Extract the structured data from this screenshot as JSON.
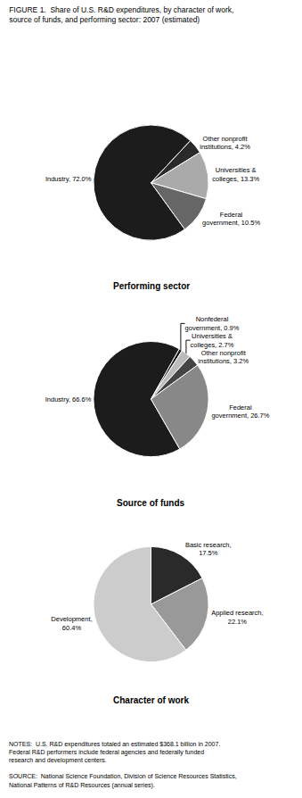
{
  "chart_data": [
    {
      "type": "pie",
      "title": "FIGURE 1.  Share of U.S. R&D expenditures, by character of work,\nsource of funds, and performing sector: 2007 (estimated)",
      "subtitle": "Performing sector",
      "values": [
        72.0,
        4.2,
        13.3,
        10.5
      ],
      "value_labels": [
        "Industry, 72.0%",
        "Other nonprofit\ninstitutions, 4.2%",
        "Universities &\ncolleges, 13.3%",
        "Federal\ngovernment, 10.5%"
      ],
      "colors": [
        "#1c1c1c",
        "#2a2a2a",
        "#aaaaaa",
        "#666666"
      ]
    },
    {
      "type": "pie",
      "subtitle": "Source of funds",
      "values": [
        66.6,
        0.9,
        2.7,
        3.2,
        26.7
      ],
      "value_labels": [
        "Industry, 66.6%",
        "Nonfederal\ngovernment, 0.9%",
        "Universities &\ncolleges, 2.7%",
        "Other nonprofit\ninstitutions, 3.2%",
        "Federal\ngovernment, 26.7%"
      ],
      "colors": [
        "#1c1c1c",
        "#111111",
        "#bbbbbb",
        "#444444",
        "#888888"
      ]
    },
    {
      "type": "pie",
      "subtitle": "Character of work",
      "values": [
        17.5,
        22.1,
        60.4
      ],
      "value_labels": [
        "Basic research,\n17.5%",
        "Applied research,\n22.1%",
        "Development,\n60.4%"
      ],
      "colors": [
        "#2a2a2a",
        "#999999",
        "#cccccc"
      ],
      "annotations": [
        "NOTES:  U.S. R&D expenditures totaled an estimated $368.1 billion in 2007.\nFederal R&D performers include federal agencies and federally funded\nresearch and development centers.\n\nSOURCE:  National Science Foundation, Division of Science Resources Statistics,\nNational Patterns of R&D Resources (annual series)."
      ]
    }
  ]
}
